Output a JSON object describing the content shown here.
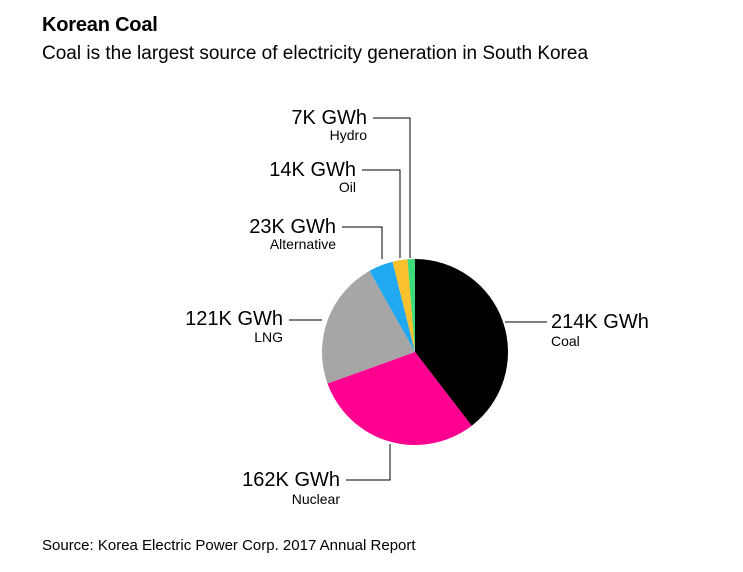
{
  "header": {
    "title": "Korean Coal",
    "subtitle": "Coal is the largest source of electricity generation in South Korea"
  },
  "footer": {
    "source": "Source: Korea Electric Power Corp. 2017 Annual Report"
  },
  "chart_data": {
    "type": "pie",
    "unit": "GWh",
    "slices": [
      {
        "name": "Coal",
        "value": 214000,
        "value_label": "214K GWh",
        "color": "#000000"
      },
      {
        "name": "Nuclear",
        "value": 162000,
        "value_label": "162K GWh",
        "color": "#ff0090"
      },
      {
        "name": "LNG",
        "value": 121000,
        "value_label": "121K GWh",
        "color": "#a6a6a6"
      },
      {
        "name": "Alternative",
        "value": 23000,
        "value_label": "23K GWh",
        "color": "#20a9f0"
      },
      {
        "name": "Oil",
        "value": 14000,
        "value_label": "14K GWh",
        "color": "#fbc02d"
      },
      {
        "name": "Hydro",
        "value": 7000,
        "value_label": "7K GWh",
        "color": "#3ddc7a"
      }
    ],
    "start": "12 o'clock",
    "direction": "clockwise",
    "legend": "none"
  }
}
